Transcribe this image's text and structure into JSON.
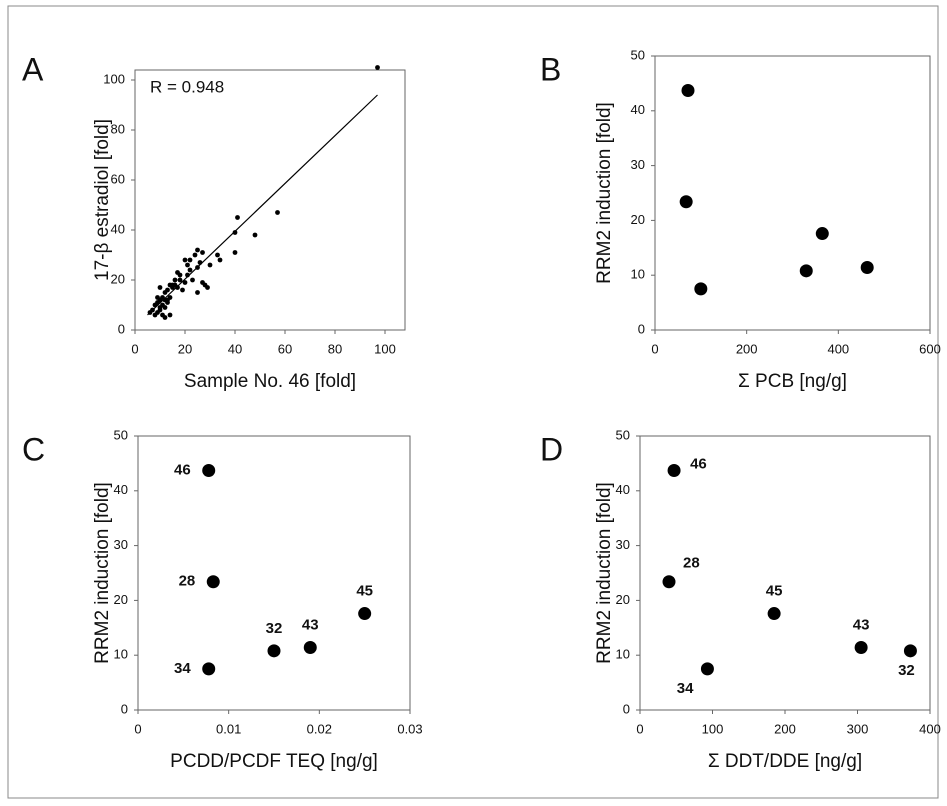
{
  "chart_data": [
    {
      "type": "scatter",
      "panel_label": "A",
      "annotation": "R = 0.948",
      "x_label": "Sample No. 46 [fold]",
      "y_label": "17-β estradiol [fold]",
      "xlim": [
        0,
        108
      ],
      "ylim": [
        0,
        104
      ],
      "xticks": [
        0,
        20,
        40,
        60,
        80,
        100
      ],
      "yticks": [
        0,
        20,
        40,
        60,
        80,
        100
      ],
      "color": "#000000",
      "marker_size": "small",
      "x": [
        97,
        57,
        48,
        41,
        40,
        40,
        33,
        34,
        25,
        27,
        24,
        22,
        20,
        21,
        22,
        23,
        25,
        27,
        28,
        29,
        25,
        19,
        18,
        17,
        18,
        16,
        15,
        14,
        13,
        12,
        14,
        12,
        10,
        11,
        10,
        9,
        8,
        9,
        8,
        7,
        6,
        10,
        11,
        12,
        13,
        11,
        12,
        14,
        15,
        17,
        13,
        9,
        10,
        16,
        20,
        21,
        26,
        30
      ],
      "values": [
        105,
        47,
        38,
        45,
        39,
        31,
        30,
        28,
        32,
        31,
        30,
        28,
        28,
        22,
        24,
        20,
        25,
        19,
        18,
        17,
        15,
        16,
        20,
        23,
        22,
        18,
        17,
        18,
        16,
        15,
        13,
        12,
        12,
        10,
        9,
        11,
        10,
        7,
        6,
        8,
        7,
        17,
        13,
        9,
        11,
        6,
        5,
        6,
        18,
        17,
        12,
        13,
        8,
        20,
        19,
        26,
        27,
        26
      ],
      "fit": {
        "x": [
          5,
          97
        ],
        "y": [
          6,
          94
        ]
      }
    },
    {
      "type": "scatter",
      "panel_label": "B",
      "x_label": "Σ PCB [ng/g]",
      "y_label": "RRM2 induction [fold]",
      "xlim": [
        0,
        600
      ],
      "ylim": [
        0,
        50
      ],
      "xticks": [
        0,
        200,
        400,
        600
      ],
      "yticks": [
        0,
        10,
        20,
        30,
        40,
        50
      ],
      "color": "#000000",
      "marker_size": "large",
      "x": [
        72,
        68,
        100,
        330,
        365,
        463
      ],
      "values": [
        43.7,
        23.4,
        7.5,
        10.8,
        17.6,
        11.4
      ]
    },
    {
      "type": "scatter",
      "panel_label": "C",
      "x_label": "PCDD/PCDF TEQ [ng/g]",
      "y_label": "RRM2 induction [fold]",
      "xlim": [
        0,
        0.03
      ],
      "ylim": [
        0,
        50
      ],
      "xticks": [
        0,
        0.01,
        0.02,
        0.03
      ],
      "yticks": [
        0,
        10,
        20,
        30,
        40,
        50
      ],
      "color": "#000000",
      "marker_size": "large",
      "x": [
        0.0078,
        0.0083,
        0.0078,
        0.015,
        0.019,
        0.025
      ],
      "values": [
        43.7,
        23.4,
        7.5,
        10.8,
        11.4,
        17.6
      ],
      "point_labels": [
        "46",
        "28",
        "34",
        "32",
        "43",
        "45"
      ]
    },
    {
      "type": "scatter",
      "panel_label": "D",
      "x_label": "Σ DDT/DDE [ng/g]",
      "y_label": "RRM2 induction [fold]",
      "xlim": [
        0,
        400
      ],
      "ylim": [
        0,
        50
      ],
      "xticks": [
        0,
        100,
        200,
        300,
        400
      ],
      "yticks": [
        0,
        10,
        20,
        30,
        40,
        50
      ],
      "color": "#000000",
      "marker_size": "large",
      "x": [
        47,
        40,
        93,
        185,
        305,
        373
      ],
      "values": [
        43.7,
        23.4,
        7.5,
        17.6,
        11.4,
        10.8
      ],
      "point_labels": [
        "46",
        "28",
        "34",
        "45",
        "43",
        "32"
      ]
    }
  ]
}
